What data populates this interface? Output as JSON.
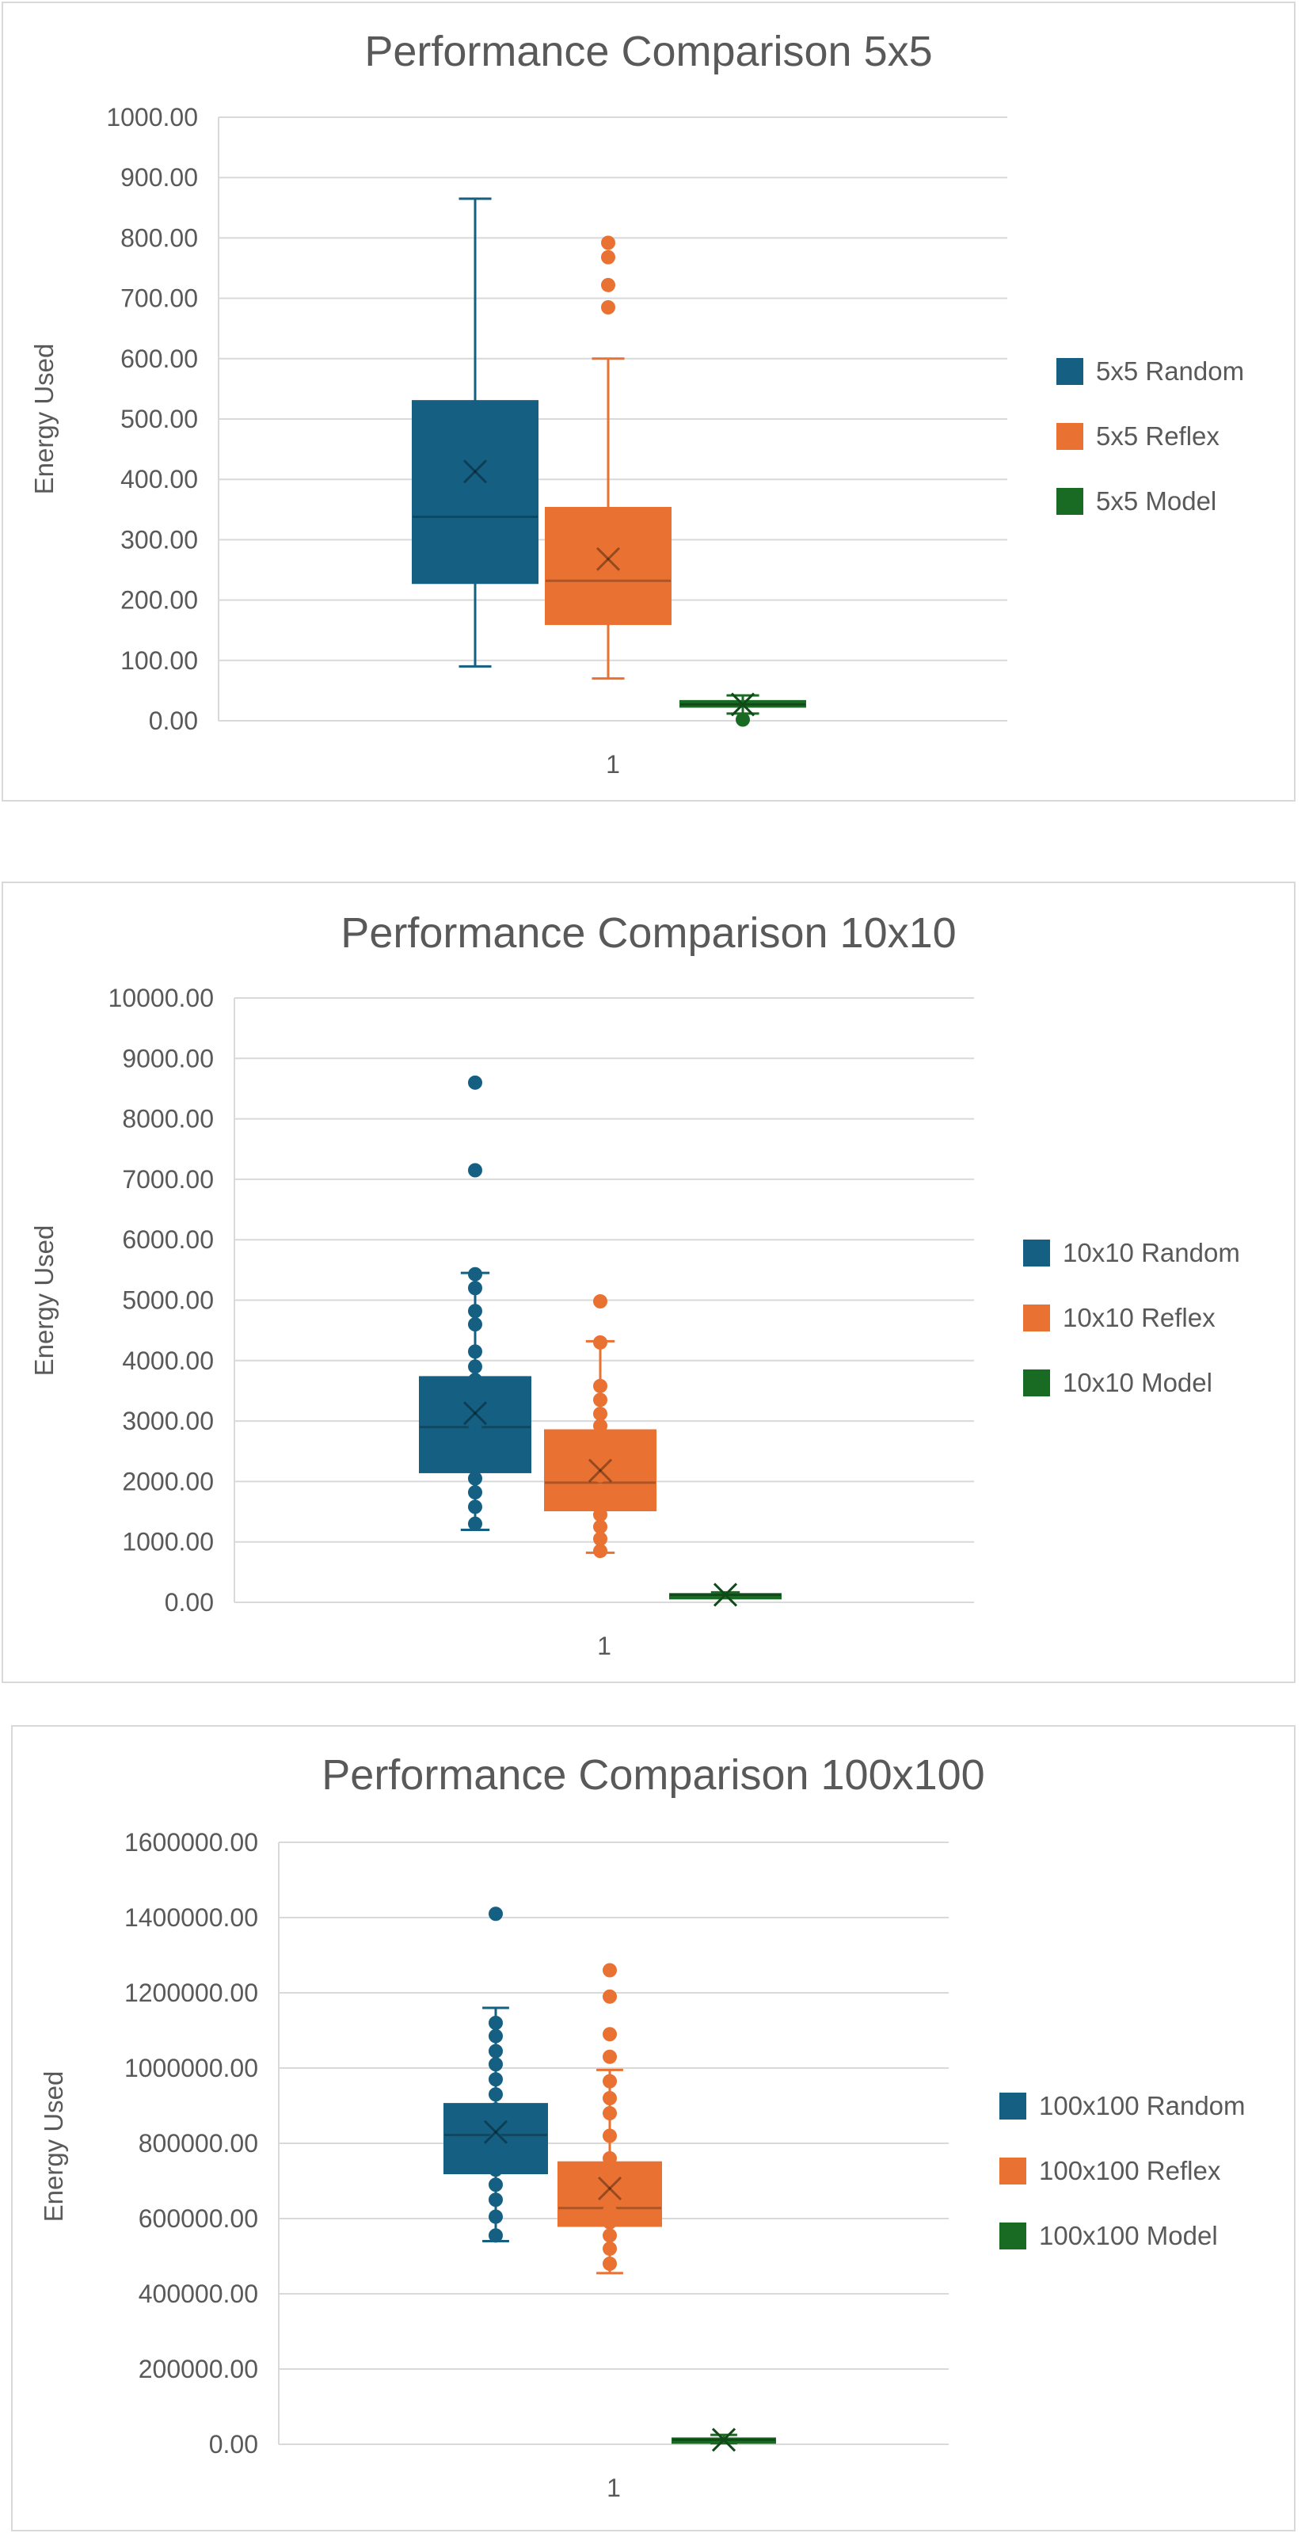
{
  "colors": {
    "random": "#156082",
    "reflex": "#e97132",
    "model": "#196b24",
    "grid": "#d9d9d9"
  },
  "chart_data": [
    {
      "type": "box",
      "title": "Performance Comparison 5x5",
      "ylabel": "Energy Used",
      "xlabel": "",
      "category": "1",
      "ylim": [
        0,
        1000
      ],
      "tick_step": 100,
      "ticks": [
        "0.00",
        "100.00",
        "200.00",
        "300.00",
        "400.00",
        "500.00",
        "600.00",
        "700.00",
        "800.00",
        "900.00",
        "1000.00"
      ],
      "legend_position": "right",
      "series": [
        {
          "name": "5x5 Random",
          "color_key": "random",
          "q1": 228,
          "median": 338,
          "q3": 530,
          "whisker_low": 90,
          "whisker_high": 865,
          "mean": 413,
          "outliers": []
        },
        {
          "name": "5x5 Reflex",
          "color_key": "reflex",
          "q1": 160,
          "median": 232,
          "q3": 353,
          "whisker_low": 70,
          "whisker_high": 600,
          "mean": 268,
          "outliers": [
            685,
            722,
            768,
            792
          ]
        },
        {
          "name": "5x5 Model",
          "color_key": "model",
          "q1": 23,
          "median": 27,
          "q3": 33,
          "whisker_low": 12,
          "whisker_high": 42,
          "mean": 27,
          "outliers": [
            2
          ]
        }
      ]
    },
    {
      "type": "box",
      "title": "Performance Comparison 10x10",
      "ylabel": "Energy Used",
      "xlabel": "",
      "category": "1",
      "ylim": [
        0,
        10000
      ],
      "tick_step": 1000,
      "ticks": [
        "0.00",
        "1000.00",
        "2000.00",
        "3000.00",
        "4000.00",
        "5000.00",
        "6000.00",
        "7000.00",
        "8000.00",
        "9000.00",
        "10000.00"
      ],
      "legend_position": "right",
      "series": [
        {
          "name": "10x10 Random",
          "color_key": "random",
          "q1": 2150,
          "median": 2900,
          "q3": 3730,
          "whisker_low": 1200,
          "whisker_high": 5450,
          "mean": 3130,
          "outliers": [
            8600,
            7150
          ],
          "points": [
            1300,
            1580,
            1820,
            2050,
            2280,
            2500,
            2720,
            2950,
            3200,
            3450,
            3680,
            3900,
            4150,
            4600,
            4820,
            5200,
            5430
          ]
        },
        {
          "name": "10x10 Reflex",
          "color_key": "reflex",
          "q1": 1520,
          "median": 1980,
          "q3": 2850,
          "whisker_low": 820,
          "whisker_high": 4320,
          "mean": 2180,
          "outliers": [
            4980
          ],
          "points": [
            850,
            1050,
            1250,
            1450,
            1650,
            1850,
            2100,
            2300,
            2500,
            2700,
            2920,
            3120,
            3350,
            3580,
            4300
          ]
        },
        {
          "name": "10x10 Model",
          "color_key": "model",
          "q1": 110,
          "median": 125,
          "q3": 140,
          "whisker_low": 80,
          "whisker_high": 165,
          "mean": 125,
          "outliers": []
        }
      ]
    },
    {
      "type": "box",
      "title": "Performance Comparison 100x100",
      "ylabel": "Energy Used",
      "xlabel": "",
      "category": "1",
      "ylim": [
        0,
        1600000
      ],
      "tick_step": 200000,
      "ticks": [
        "0.00",
        "200000.00",
        "400000.00",
        "600000.00",
        "800000.00",
        "1000000.00",
        "1200000.00",
        "1400000.00",
        "1600000.00"
      ],
      "legend_position": "right",
      "series": [
        {
          "name": "100x100 Random",
          "color_key": "random",
          "q1": 720000,
          "median": 822000,
          "q3": 905000,
          "whisker_low": 540000,
          "whisker_high": 1160000,
          "mean": 830000,
          "outliers": [
            1410000
          ],
          "points": [
            555000,
            605000,
            650000,
            690000,
            730000,
            770000,
            810000,
            850000,
            890000,
            930000,
            970000,
            1010000,
            1045000,
            1085000,
            1120000
          ]
        },
        {
          "name": "100x100 Reflex",
          "color_key": "reflex",
          "q1": 580000,
          "median": 628000,
          "q3": 750000,
          "whisker_low": 455000,
          "whisker_high": 995000,
          "mean": 680000,
          "outliers": [
            1030000,
            1090000,
            1190000,
            1260000
          ],
          "points": [
            480000,
            520000,
            555000,
            590000,
            620000,
            650000,
            685000,
            720000,
            760000,
            820000,
            880000,
            920000,
            965000
          ]
        },
        {
          "name": "100x100 Model",
          "color_key": "model",
          "q1": 8000,
          "median": 12000,
          "q3": 16000,
          "whisker_low": 3000,
          "whisker_high": 25000,
          "mean": 12000,
          "outliers": []
        }
      ]
    }
  ]
}
